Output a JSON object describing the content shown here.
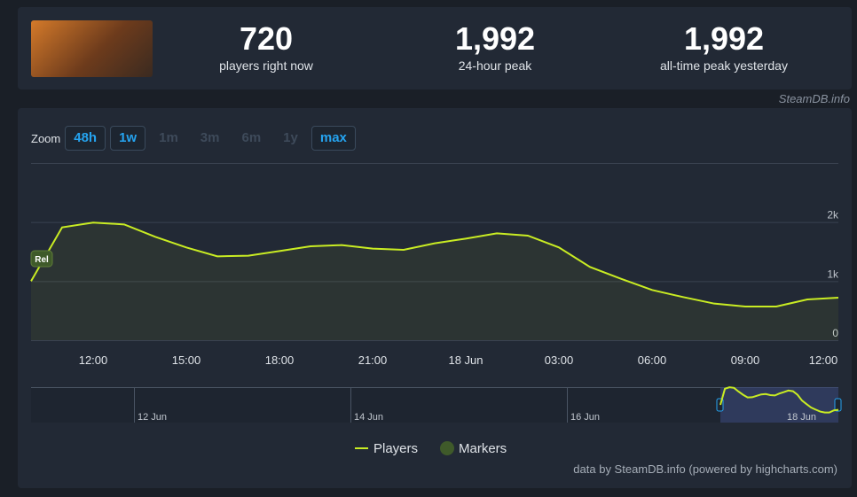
{
  "header": {
    "stats": [
      {
        "value": "720",
        "label": "players right now"
      },
      {
        "value": "1,992",
        "label": "24-hour peak"
      },
      {
        "value": "1,992",
        "label": "all-time peak yesterday"
      }
    ],
    "source": "SteamDB.info"
  },
  "zoom": {
    "label": "Zoom",
    "buttons": [
      "48h",
      "1w",
      "1m",
      "3m",
      "6m",
      "1y",
      "max"
    ]
  },
  "chart_data": {
    "type": "line",
    "categories": [
      null,
      null,
      "12:00",
      null,
      null,
      "15:00",
      null,
      null,
      "18:00",
      null,
      null,
      "21:00",
      null,
      null,
      "18 Jun",
      null,
      null,
      "03:00",
      null,
      null,
      "06:00",
      null,
      null,
      "09:00",
      null,
      null,
      "12:00"
    ],
    "series": [
      {
        "name": "Players",
        "color": "#c9ec23",
        "values": [
          1000,
          1910,
          1992,
          1960,
          1750,
          1570,
          1420,
          1430,
          1510,
          1590,
          1610,
          1550,
          1530,
          1640,
          1720,
          1810,
          1770,
          1570,
          1240,
          1040,
          850,
          730,
          620,
          570,
          570,
          690,
          720
        ]
      }
    ],
    "ylim": [
      0,
      3000
    ],
    "yticks": [
      0,
      {
        "value": 1000,
        "label": "1k"
      },
      {
        "value": 2000,
        "label": "2k"
      }
    ],
    "grid": true,
    "annotation": "Rel",
    "navigator_labels": [
      "12 Jun",
      "14 Jun",
      "16 Jun",
      "18 Jun"
    ],
    "marker_legend": "Markers",
    "credits": "data by SteamDB.info (powered by highcharts.com)"
  }
}
